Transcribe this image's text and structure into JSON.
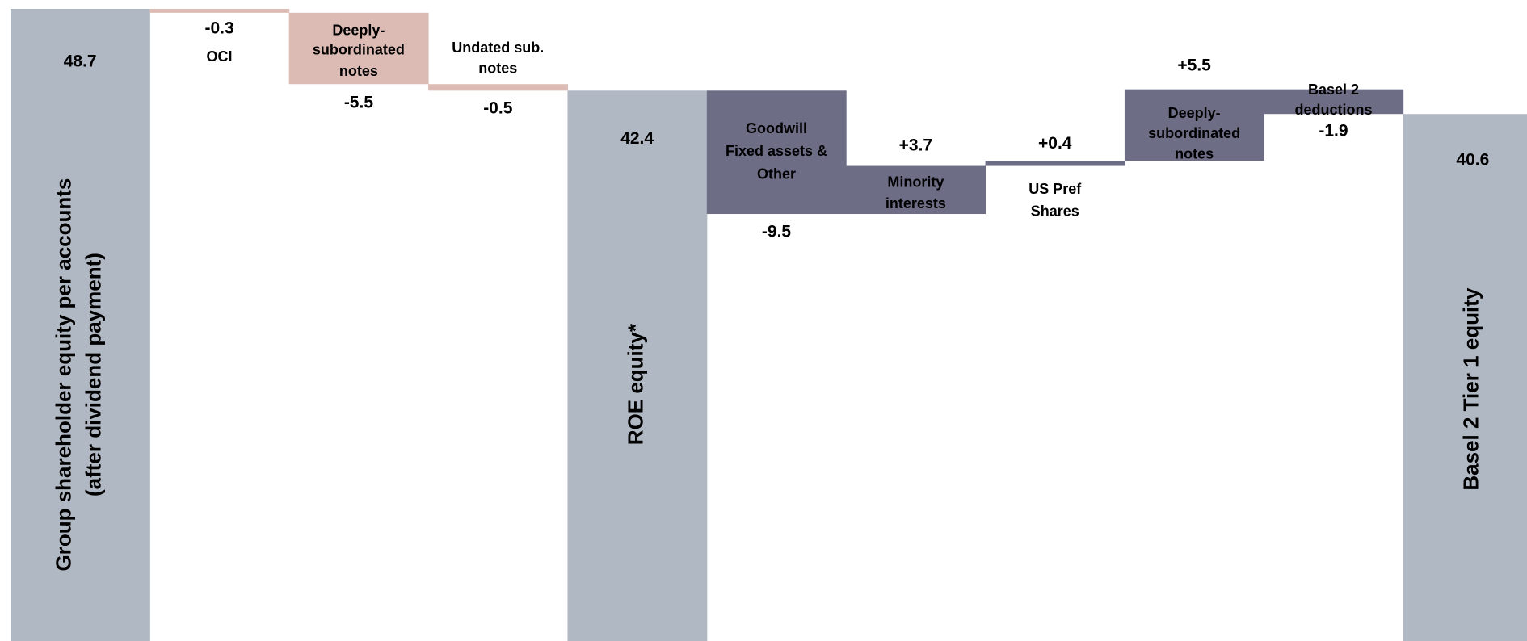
{
  "chart_data": {
    "type": "waterfall",
    "categories": [
      [
        "Group shareholder equity per accounts",
        "(after dividend payment)"
      ],
      [
        "OCI"
      ],
      [
        "Deeply-",
        "subordinated",
        "notes"
      ],
      [
        "Undated sub.",
        "notes"
      ],
      [
        "ROE equity*"
      ],
      [
        "Goodwill",
        "Fixed assets &",
        "Other"
      ],
      [
        "Minority",
        "interests"
      ],
      [
        "US Pref",
        "Shares"
      ],
      [
        "Deeply-",
        "subordinated",
        "notes"
      ],
      [
        "Basel 2",
        "deductions"
      ],
      [
        "Basel 2 Tier 1 equity"
      ]
    ],
    "values": [
      48.7,
      -0.3,
      -5.5,
      -0.5,
      42.4,
      -9.5,
      3.7,
      0.4,
      5.5,
      -1.9,
      40.6
    ],
    "value_labels": [
      "48.7",
      "-0.3",
      "-5.5",
      "-0.5",
      "42.4",
      "-9.5",
      "+3.7",
      "+0.4",
      "+5.5",
      "-1.9",
      "40.6"
    ],
    "measure": [
      "total",
      "relative",
      "relative",
      "relative",
      "total",
      "relative",
      "relative",
      "relative",
      "relative",
      "relative",
      "total"
    ],
    "colors": [
      "#b0b8c3",
      "#dbbbb3",
      "#dbbbb3",
      "#dbbbb3",
      "#b0b8c3",
      "#6d6d86",
      "#6d6d86",
      "#6d6d86",
      "#6d6d86",
      "#6d6d86",
      "#b0b8c3"
    ]
  }
}
